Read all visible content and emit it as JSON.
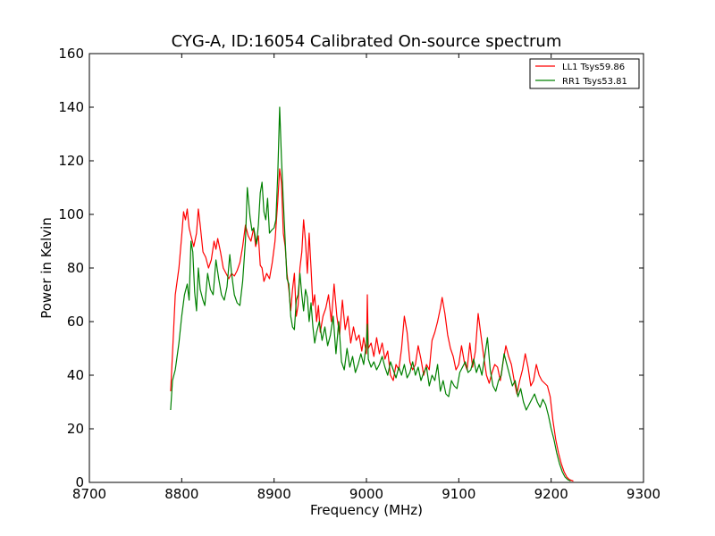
{
  "chart_data": {
    "type": "line",
    "title": "CYG-A, ID:16054 Calibrated On-source spectrum",
    "xlabel": "Frequency (MHz)",
    "ylabel": "Power in Kelvin",
    "xlim": [
      8700,
      9300
    ],
    "ylim": [
      0,
      160
    ],
    "xticks": [
      8700,
      8800,
      8900,
      9000,
      9100,
      9200,
      9300
    ],
    "yticks": [
      0,
      20,
      40,
      60,
      80,
      100,
      120,
      140,
      160
    ],
    "grid": false,
    "legend_position": "top-right",
    "series": [
      {
        "name": "LL1 Tsys59.86",
        "color": "#ff0000",
        "points": [
          [
            8788,
            34
          ],
          [
            8790,
            48
          ],
          [
            8793,
            70
          ],
          [
            8797,
            80
          ],
          [
            8800,
            92
          ],
          [
            8802,
            101
          ],
          [
            8804,
            98
          ],
          [
            8806,
            102
          ],
          [
            8808,
            95
          ],
          [
            8810,
            92
          ],
          [
            8813,
            88
          ],
          [
            8816,
            93
          ],
          [
            8818,
            102
          ],
          [
            8820,
            96
          ],
          [
            8823,
            86
          ],
          [
            8826,
            84
          ],
          [
            8829,
            80
          ],
          [
            8832,
            83
          ],
          [
            8835,
            90
          ],
          [
            8837,
            87
          ],
          [
            8839,
            91
          ],
          [
            8842,
            86
          ],
          [
            8845,
            80
          ],
          [
            8848,
            78
          ],
          [
            8851,
            76
          ],
          [
            8854,
            78
          ],
          [
            8857,
            77
          ],
          [
            8860,
            79
          ],
          [
            8863,
            82
          ],
          [
            8866,
            88
          ],
          [
            8869,
            96
          ],
          [
            8872,
            92
          ],
          [
            8875,
            90
          ],
          [
            8878,
            95
          ],
          [
            8880,
            88
          ],
          [
            8883,
            92
          ],
          [
            8885,
            81
          ],
          [
            8887,
            80
          ],
          [
            8889,
            75
          ],
          [
            8892,
            78
          ],
          [
            8895,
            76
          ],
          [
            8898,
            82
          ],
          [
            8901,
            90
          ],
          [
            8904,
            105
          ],
          [
            8906,
            117
          ],
          [
            8908,
            112
          ],
          [
            8910,
            93
          ],
          [
            8912,
            88
          ],
          [
            8914,
            78
          ],
          [
            8916,
            72
          ],
          [
            8918,
            64
          ],
          [
            8920,
            72
          ],
          [
            8922,
            78
          ],
          [
            8924,
            62
          ],
          [
            8926,
            66
          ],
          [
            8928,
            80
          ],
          [
            8930,
            86
          ],
          [
            8932,
            98
          ],
          [
            8934,
            90
          ],
          [
            8936,
            78
          ],
          [
            8938,
            93
          ],
          [
            8940,
            80
          ],
          [
            8942,
            66
          ],
          [
            8944,
            70
          ],
          [
            8946,
            60
          ],
          [
            8948,
            66
          ],
          [
            8950,
            56
          ],
          [
            8953,
            62
          ],
          [
            8956,
            65
          ],
          [
            8959,
            70
          ],
          [
            8962,
            60
          ],
          [
            8965,
            74
          ],
          [
            8968,
            62
          ],
          [
            8971,
            55
          ],
          [
            8974,
            68
          ],
          [
            8977,
            57
          ],
          [
            8980,
            62
          ],
          [
            8983,
            52
          ],
          [
            8986,
            58
          ],
          [
            8989,
            53
          ],
          [
            8992,
            55
          ],
          [
            8995,
            49
          ],
          [
            8997,
            54
          ],
          [
            9000,
            48
          ],
          [
            9001,
            70
          ],
          [
            9002,
            50
          ],
          [
            9005,
            52
          ],
          [
            9008,
            47
          ],
          [
            9011,
            54
          ],
          [
            9014,
            48
          ],
          [
            9017,
            52
          ],
          [
            9020,
            46
          ],
          [
            9023,
            49
          ],
          [
            9026,
            40
          ],
          [
            9029,
            38
          ],
          [
            9032,
            44
          ],
          [
            9035,
            42
          ],
          [
            9038,
            50
          ],
          [
            9041,
            62
          ],
          [
            9044,
            56
          ],
          [
            9047,
            45
          ],
          [
            9050,
            42
          ],
          [
            9053,
            44
          ],
          [
            9056,
            51
          ],
          [
            9059,
            46
          ],
          [
            9062,
            40
          ],
          [
            9065,
            44
          ],
          [
            9068,
            42
          ],
          [
            9071,
            53
          ],
          [
            9074,
            56
          ],
          [
            9077,
            60
          ],
          [
            9080,
            65
          ],
          [
            9082,
            69
          ],
          [
            9085,
            63
          ],
          [
            9088,
            55
          ],
          [
            9091,
            50
          ],
          [
            9094,
            47
          ],
          [
            9097,
            42
          ],
          [
            9100,
            44
          ],
          [
            9103,
            51
          ],
          [
            9106,
            45
          ],
          [
            9109,
            42
          ],
          [
            9112,
            52
          ],
          [
            9115,
            43
          ],
          [
            9118,
            49
          ],
          [
            9121,
            63
          ],
          [
            9124,
            55
          ],
          [
            9127,
            47
          ],
          [
            9130,
            40
          ],
          [
            9133,
            37
          ],
          [
            9136,
            41
          ],
          [
            9139,
            44
          ],
          [
            9142,
            43
          ],
          [
            9145,
            38
          ],
          [
            9148,
            45
          ],
          [
            9151,
            51
          ],
          [
            9154,
            47
          ],
          [
            9157,
            44
          ],
          [
            9160,
            38
          ],
          [
            9163,
            33
          ],
          [
            9166,
            38
          ],
          [
            9169,
            42
          ],
          [
            9172,
            48
          ],
          [
            9175,
            43
          ],
          [
            9178,
            36
          ],
          [
            9181,
            38
          ],
          [
            9184,
            44
          ],
          [
            9187,
            40
          ],
          [
            9190,
            38
          ],
          [
            9193,
            37
          ],
          [
            9196,
            36
          ],
          [
            9199,
            32
          ],
          [
            9202,
            23
          ],
          [
            9205,
            16
          ],
          [
            9208,
            11
          ],
          [
            9211,
            7
          ],
          [
            9214,
            4
          ],
          [
            9217,
            2
          ],
          [
            9220,
            1
          ],
          [
            9224,
            0.5
          ]
        ]
      },
      {
        "name": "RR1 Tsys53.81",
        "color": "#008000",
        "points": [
          [
            8788,
            27
          ],
          [
            8790,
            38
          ],
          [
            8793,
            42
          ],
          [
            8797,
            52
          ],
          [
            8800,
            62
          ],
          [
            8803,
            70
          ],
          [
            8806,
            74
          ],
          [
            8808,
            68
          ],
          [
            8810,
            90
          ],
          [
            8812,
            86
          ],
          [
            8814,
            71
          ],
          [
            8816,
            64
          ],
          [
            8818,
            80
          ],
          [
            8820,
            72
          ],
          [
            8823,
            68
          ],
          [
            8825,
            66
          ],
          [
            8828,
            78
          ],
          [
            8831,
            72
          ],
          [
            8834,
            70
          ],
          [
            8837,
            83
          ],
          [
            8840,
            76
          ],
          [
            8843,
            70
          ],
          [
            8846,
            68
          ],
          [
            8849,
            73
          ],
          [
            8852,
            85
          ],
          [
            8854,
            78
          ],
          [
            8857,
            70
          ],
          [
            8860,
            67
          ],
          [
            8863,
            66
          ],
          [
            8866,
            75
          ],
          [
            8869,
            90
          ],
          [
            8871,
            110
          ],
          [
            8874,
            99
          ],
          [
            8876,
            94
          ],
          [
            8878,
            95
          ],
          [
            8881,
            89
          ],
          [
            8883,
            96
          ],
          [
            8885,
            108
          ],
          [
            8887,
            112
          ],
          [
            8889,
            101
          ],
          [
            8891,
            98
          ],
          [
            8893,
            106
          ],
          [
            8895,
            93
          ],
          [
            8897,
            94
          ],
          [
            8900,
            95
          ],
          [
            8902,
            98
          ],
          [
            8904,
            115
          ],
          [
            8906,
            140
          ],
          [
            8908,
            121
          ],
          [
            8910,
            105
          ],
          [
            8912,
            90
          ],
          [
            8914,
            76
          ],
          [
            8916,
            74
          ],
          [
            8918,
            62
          ],
          [
            8920,
            58
          ],
          [
            8922,
            57
          ],
          [
            8924,
            68
          ],
          [
            8926,
            70
          ],
          [
            8928,
            78
          ],
          [
            8930,
            70
          ],
          [
            8932,
            64
          ],
          [
            8934,
            72
          ],
          [
            8936,
            69
          ],
          [
            8938,
            60
          ],
          [
            8940,
            67
          ],
          [
            8942,
            58
          ],
          [
            8944,
            52
          ],
          [
            8946,
            56
          ],
          [
            8949,
            60
          ],
          [
            8952,
            53
          ],
          [
            8955,
            58
          ],
          [
            8958,
            51
          ],
          [
            8961,
            55
          ],
          [
            8964,
            62
          ],
          [
            8967,
            48
          ],
          [
            8970,
            60
          ],
          [
            8973,
            45
          ],
          [
            8976,
            42
          ],
          [
            8979,
            50
          ],
          [
            8982,
            43
          ],
          [
            8985,
            47
          ],
          [
            8988,
            41
          ],
          [
            8991,
            44
          ],
          [
            8994,
            48
          ],
          [
            8997,
            44
          ],
          [
            9000,
            52
          ],
          [
            9001,
            59
          ],
          [
            9002,
            46
          ],
          [
            9005,
            43
          ],
          [
            9008,
            45
          ],
          [
            9011,
            42
          ],
          [
            9014,
            44
          ],
          [
            9017,
            47
          ],
          [
            9020,
            43
          ],
          [
            9023,
            40
          ],
          [
            9026,
            45
          ],
          [
            9029,
            42
          ],
          [
            9032,
            39
          ],
          [
            9035,
            43
          ],
          [
            9038,
            40
          ],
          [
            9041,
            44
          ],
          [
            9044,
            39
          ],
          [
            9047,
            41
          ],
          [
            9050,
            45
          ],
          [
            9053,
            40
          ],
          [
            9056,
            43
          ],
          [
            9059,
            38
          ],
          [
            9062,
            41
          ],
          [
            9065,
            43
          ],
          [
            9068,
            36
          ],
          [
            9071,
            40
          ],
          [
            9074,
            38
          ],
          [
            9077,
            44
          ],
          [
            9080,
            34
          ],
          [
            9083,
            38
          ],
          [
            9086,
            33
          ],
          [
            9089,
            32
          ],
          [
            9092,
            38
          ],
          [
            9095,
            36
          ],
          [
            9098,
            35
          ],
          [
            9101,
            41
          ],
          [
            9104,
            43
          ],
          [
            9107,
            45
          ],
          [
            9110,
            41
          ],
          [
            9113,
            42
          ],
          [
            9116,
            46
          ],
          [
            9119,
            41
          ],
          [
            9122,
            44
          ],
          [
            9125,
            40
          ],
          [
            9128,
            47
          ],
          [
            9131,
            54
          ],
          [
            9134,
            42
          ],
          [
            9137,
            36
          ],
          [
            9140,
            34
          ],
          [
            9143,
            38
          ],
          [
            9146,
            40
          ],
          [
            9149,
            48
          ],
          [
            9152,
            44
          ],
          [
            9155,
            40
          ],
          [
            9158,
            36
          ],
          [
            9161,
            38
          ],
          [
            9164,
            32
          ],
          [
            9167,
            35
          ],
          [
            9170,
            30
          ],
          [
            9173,
            27
          ],
          [
            9176,
            29
          ],
          [
            9179,
            31
          ],
          [
            9182,
            33
          ],
          [
            9185,
            30
          ],
          [
            9188,
            28
          ],
          [
            9191,
            31
          ],
          [
            9194,
            29
          ],
          [
            9197,
            25
          ],
          [
            9200,
            20
          ],
          [
            9203,
            16
          ],
          [
            9206,
            11
          ],
          [
            9209,
            7
          ],
          [
            9212,
            4
          ],
          [
            9215,
            2
          ],
          [
            9218,
            1
          ],
          [
            9221,
            0.5
          ]
        ]
      }
    ]
  }
}
